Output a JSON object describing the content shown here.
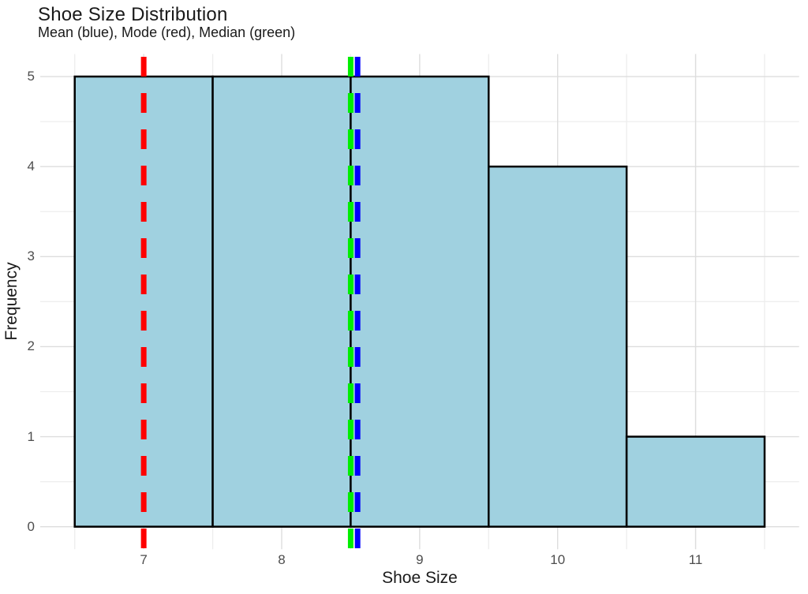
{
  "title": "Shoe Size Distribution",
  "subtitle": "Mean (blue), Mode (red), Median (green)",
  "chart_data": {
    "type": "bar",
    "subtype": "histogram",
    "title": "Shoe Size Distribution",
    "subtitle": "Mean (blue), Mode (red), Median (green)",
    "xlabel": "Shoe Size",
    "ylabel": "Frequency",
    "bins": [
      {
        "x0": 6.5,
        "x1": 7.5,
        "count": 5
      },
      {
        "x0": 7.5,
        "x1": 8.5,
        "count": 5
      },
      {
        "x0": 8.5,
        "x1": 9.5,
        "count": 5
      },
      {
        "x0": 9.5,
        "x1": 10.5,
        "count": 4
      },
      {
        "x0": 10.5,
        "x1": 11.5,
        "count": 1
      }
    ],
    "stat_lines": [
      {
        "name": "mode",
        "value": 7,
        "color": "#ff0000",
        "legend": "Mode (red)"
      },
      {
        "name": "median",
        "value": 8.5,
        "color": "#00ee00",
        "legend": "Median (green)"
      },
      {
        "name": "mean",
        "value": 8.55,
        "color": "#0000ff",
        "legend": "Mean (blue)"
      }
    ],
    "x_ticks": [
      "7",
      "8",
      "9",
      "10",
      "11"
    ],
    "x_tick_values": [
      7,
      8,
      9,
      10,
      11
    ],
    "x_minor_values": [
      6.5,
      7.5,
      8.5,
      9.5,
      10.5,
      11.5
    ],
    "y_ticks": [
      "0",
      "1",
      "2",
      "3",
      "4",
      "5"
    ],
    "y_tick_values": [
      0,
      1,
      2,
      3,
      4,
      5
    ],
    "y_minor_values": [
      0.5,
      1.5,
      2.5,
      3.5,
      4.5
    ],
    "xlim": [
      6.25,
      11.75
    ],
    "ylim": [
      -0.25,
      5.25
    ],
    "grid": {
      "on": true,
      "major_color": "#dddddd",
      "minor_color": "#ededed"
    },
    "bar_style": {
      "fill": "#a0d1e0",
      "stroke": "#000000"
    },
    "background": "#ffffff",
    "legend_position": "none"
  }
}
